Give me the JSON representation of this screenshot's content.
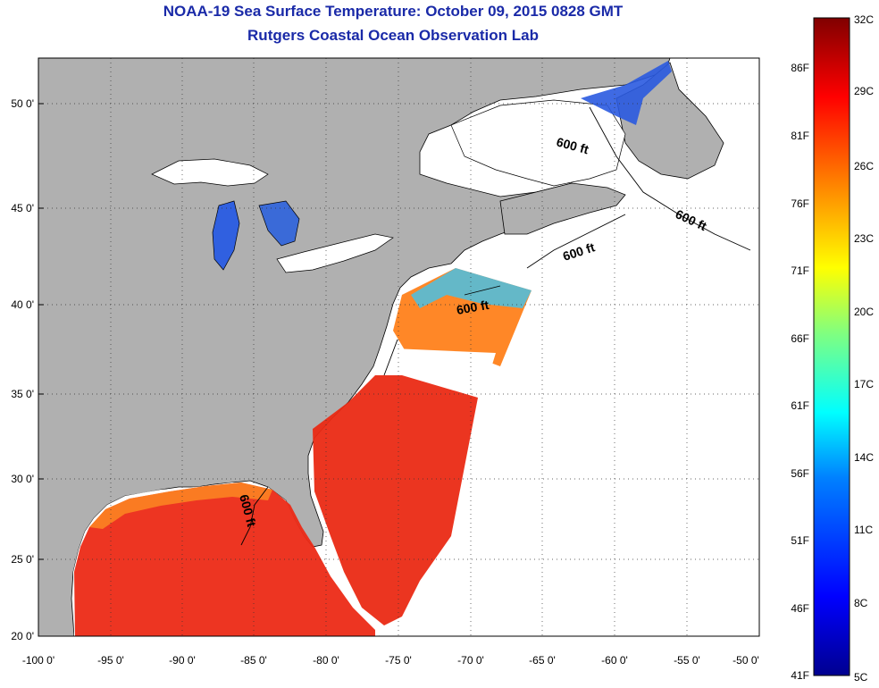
{
  "header": {
    "title": "NOAA-19 Sea Surface Temperature:  October 09, 2015 0828 GMT",
    "subtitle": "Rutgers Coastal Ocean Observation Lab"
  },
  "map": {
    "lon_range": [
      -100,
      -50
    ],
    "lat_range": [
      20,
      52.5
    ],
    "x_ticks": [
      "-100 0'",
      "-95 0'",
      "-90 0'",
      "-85 0'",
      "-80 0'",
      "-75 0'",
      "-70 0'",
      "-65 0'",
      "-60 0'",
      "-55 0'",
      "-50 0'"
    ],
    "y_ticks": [
      "50 0'",
      "45 0'",
      "40 0'",
      "35 0'",
      "30 0'",
      "25 0'",
      "20 0'"
    ],
    "contour_labels": [
      "600 ft",
      "600 ft",
      "600 ft",
      "600 ft",
      "600 ft"
    ],
    "grid": "dotted",
    "land_color": "#b0b0b0",
    "ocean_color": "#ffffff"
  },
  "colorbar": {
    "celsius_labels": [
      "32C",
      "29C",
      "26C",
      "23C",
      "20C",
      "17C",
      "14C",
      "11C",
      "8C",
      "5C"
    ],
    "fahrenheit_labels": [
      "86F",
      "81F",
      "76F",
      "71F",
      "66F",
      "61F",
      "56F",
      "51F",
      "46F",
      "41F"
    ],
    "range_c": [
      5,
      32
    ],
    "colors": [
      "#00008f",
      "#0000ff",
      "#0080ff",
      "#00ffff",
      "#80ff80",
      "#ffff00",
      "#ff8000",
      "#ff0000",
      "#800000"
    ]
  }
}
